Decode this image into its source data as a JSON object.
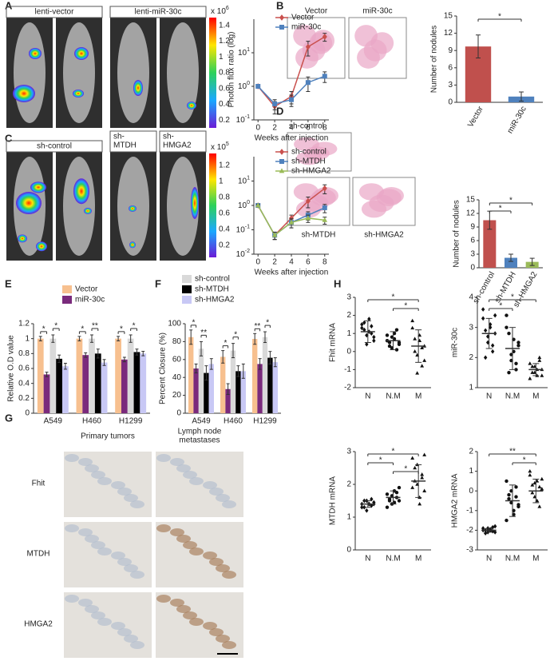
{
  "panel_labels": [
    "A",
    "B",
    "C",
    "D",
    "E",
    "F",
    "G",
    "H"
  ],
  "images": {
    "A": {
      "captions": [
        "lenti-vector",
        "lenti-miR-30c"
      ],
      "colorbar": {
        "multiplier": "x 10",
        "exponent": "6",
        "lim": [
          0.1,
          1.5
        ],
        "ticks": [
          1.4,
          1.2,
          1,
          0.8,
          0.6,
          0.4,
          0.2
        ]
      }
    },
    "B": {
      "captions": [
        "Vector",
        "miR-30c"
      ]
    },
    "C": {
      "captions": [
        "sh-control",
        [
          "sh-",
          "MTDH"
        ],
        [
          "sh-",
          "HMGA2"
        ]
      ],
      "colorbar": {
        "multiplier": "x 10",
        "exponent": "5",
        "lim": [
          0.05,
          1.35
        ],
        "ticks": [
          1.2,
          1,
          0.8,
          0.6,
          0.4,
          0.2
        ]
      }
    },
    "D": {
      "captions": [
        "sh-control",
        "sh-MTDH",
        "sh-HMGA2"
      ]
    },
    "G": {
      "columns": [
        "Primary tumors",
        [
          "Lymph node",
          "metastases"
        ]
      ],
      "rows": [
        "Fhit",
        "MTDH",
        "HMGA2"
      ]
    }
  },
  "chart_data": [
    {
      "type": "line",
      "log_y": true,
      "x": [
        0,
        2,
        4,
        6,
        8
      ],
      "xlim": [
        -0.5,
        8.5
      ],
      "xticks": [
        0,
        2,
        4,
        6,
        8
      ],
      "ylim": [
        0.1,
        100
      ],
      "yticks": [
        {
          "value": 10,
          "label": "10",
          "exponent": "1"
        },
        {
          "value": 1,
          "label": "10",
          "exponent": "0"
        },
        {
          "value": 0.1,
          "label": "10",
          "exponent": "-1"
        }
      ],
      "xlabel": "Weeks after injection",
      "ylabel": "Photon flux ratio (log)",
      "series": [
        {
          "name": "Vector",
          "color": "#c9504d",
          "marker": "diamond",
          "values": [
            1,
            0.25,
            0.5,
            15,
            30
          ],
          "errors": [
            0.1,
            0.1,
            0.2,
            7,
            8
          ]
        },
        {
          "name": "miR-30c",
          "color": "#4f81bd",
          "marker": "square",
          "values": [
            1,
            0.3,
            0.4,
            1.3,
            2
          ],
          "errors": [
            0.1,
            0.1,
            0.15,
            0.6,
            0.7
          ]
        }
      ]
    },
    {
      "type": "bar",
      "categories": [
        "Vector",
        "miR-30c"
      ],
      "values": [
        9.7,
        1
      ],
      "errors": [
        2,
        0.8
      ],
      "colors": [
        "#c0504d",
        "#4f81bd"
      ],
      "ylim": [
        0,
        15
      ],
      "yticks": [
        0,
        3,
        6,
        9,
        12,
        15
      ],
      "ylabel": "Number of nodules",
      "significance": [
        {
          "label": "*",
          "between": [
            "Vector",
            "miR-30c"
          ]
        }
      ]
    },
    {
      "type": "line",
      "log_y": true,
      "x": [
        0,
        2,
        4,
        6,
        8
      ],
      "xlim": [
        -0.5,
        8.5
      ],
      "xticks": [
        0,
        2,
        4,
        6,
        8
      ],
      "ylim": [
        0.01,
        100
      ],
      "yticks": [
        {
          "value": 10,
          "label": "10",
          "exponent": "1"
        },
        {
          "value": 1,
          "label": "10",
          "exponent": "0"
        },
        {
          "value": 0.1,
          "label": "10",
          "exponent": "-1"
        },
        {
          "value": 0.01,
          "label": "10",
          "exponent": "-2"
        }
      ],
      "xlabel": "Weeks after injection",
      "series": [
        {
          "name": "sh-control",
          "color": "#c9504d",
          "marker": "diamond",
          "values": [
            1,
            0.06,
            0.3,
            1.5,
            5
          ],
          "errors": [
            0.1,
            0.02,
            0.1,
            0.7,
            2
          ]
        },
        {
          "name": "sh-MTDH",
          "color": "#4f81bd",
          "marker": "square",
          "values": [
            1,
            0.06,
            0.2,
            0.4,
            0.8
          ],
          "errors": [
            0.1,
            0.02,
            0.08,
            0.15,
            0.3
          ]
        },
        {
          "name": "sh-HMGA2",
          "color": "#9bbb59",
          "marker": "triangle",
          "values": [
            1,
            0.06,
            0.2,
            0.3,
            0.25
          ],
          "errors": [
            0.1,
            0.02,
            0.08,
            0.1,
            0.08
          ]
        }
      ]
    },
    {
      "type": "bar",
      "categories": [
        "sh-control",
        "sh-MTDH",
        "sh-HMGA2"
      ],
      "values": [
        10.5,
        2.2,
        1.3
      ],
      "errors": [
        2,
        0.8,
        0.8
      ],
      "colors": [
        "#c0504d",
        "#4f81bd",
        "#9bbb59"
      ],
      "ylim": [
        0,
        15
      ],
      "yticks": [
        0,
        3,
        6,
        9,
        12,
        15
      ],
      "ylabel": "Number of nodules",
      "significance": [
        {
          "label": "*",
          "between": [
            "sh-control",
            "sh-HMGA2"
          ]
        },
        {
          "label": "*",
          "between": [
            "sh-control",
            "sh-MTDH"
          ]
        }
      ]
    },
    {
      "type": "grouped_bar",
      "categories": [
        "A549",
        "H460",
        "H1299"
      ],
      "ylim": [
        0,
        1.2
      ],
      "yticks": [
        0,
        0.2,
        0.4,
        0.6,
        0.8,
        1,
        1.2
      ],
      "ylabel": "Relative O.D value",
      "series": [
        {
          "name": "Vector",
          "color": "#f7c08f",
          "values": [
            1,
            1,
            1
          ],
          "errors": [
            0.03,
            0.03,
            0.03
          ]
        },
        {
          "name": "miR-30c",
          "color": "#7a2a7c",
          "values": [
            0.52,
            0.78,
            0.72
          ],
          "errors": [
            0.03,
            0.03,
            0.03
          ]
        },
        {
          "name": "sh-control",
          "color": "#d9d9d9",
          "values": [
            1,
            1,
            1
          ],
          "errors": [
            0.05,
            0.05,
            0.05
          ]
        },
        {
          "name": "sh-MTDH",
          "color": "#000000",
          "values": [
            0.73,
            0.8,
            0.82
          ],
          "errors": [
            0.05,
            0.06,
            0.04
          ]
        },
        {
          "name": "sh-HMGA2",
          "color": "#c8c8f5",
          "values": [
            0.63,
            0.68,
            0.8
          ],
          "errors": [
            0.04,
            0.04,
            0.03
          ]
        }
      ],
      "significance": [
        [
          "*",
          "*"
        ],
        [
          "*",
          "**"
        ],
        [
          "*",
          "*"
        ]
      ]
    },
    {
      "type": "grouped_bar",
      "categories": [
        "A549",
        "H460",
        "H1299"
      ],
      "ylim": [
        0,
        100
      ],
      "yticks": [
        0,
        20,
        40,
        60,
        80,
        100
      ],
      "ylabel": "Percent Closure (%)",
      "series": [
        {
          "color": "#f7c08f",
          "values": [
            85,
            63,
            83
          ],
          "errors": [
            8,
            7,
            6
          ]
        },
        {
          "color": "#7a2a7c",
          "values": [
            50,
            27,
            55
          ],
          "errors": [
            5,
            6,
            6
          ]
        },
        {
          "color": "#d9d9d9",
          "values": [
            72,
            70,
            85
          ],
          "errors": [
            8,
            8,
            6
          ]
        },
        {
          "color": "#000000",
          "values": [
            45,
            47,
            62
          ],
          "errors": [
            8,
            6,
            7
          ]
        },
        {
          "color": "#c8c8f5",
          "values": [
            55,
            47,
            57
          ],
          "errors": [
            6,
            8,
            5
          ]
        }
      ],
      "significance": [
        [
          "*",
          "**"
        ],
        [
          "*",
          "*"
        ],
        [
          "**",
          "*"
        ]
      ]
    },
    {
      "type": "strip",
      "categories": [
        "N",
        "N.M",
        "M"
      ],
      "markers": [
        "diamond",
        "circle",
        "triangle"
      ],
      "ylim": [
        -2,
        3
      ],
      "yticks": [
        -2,
        -1,
        0,
        1,
        2,
        3
      ],
      "ylabel": "Fhit mRNA",
      "groups": [
        [
          1.5,
          1.2,
          0.9,
          1.8,
          1.0,
          0.6,
          1.3,
          1.6,
          0.4,
          1.1,
          1.4,
          0.8
        ],
        [
          0.9,
          0.5,
          0.2,
          0.7,
          1.2,
          0.4,
          0.6,
          0.3,
          0.8,
          1.0,
          0.1,
          0.5
        ],
        [
          1.3,
          0.7,
          -0.2,
          0.9,
          -0.8,
          0.3,
          1.7,
          0.0,
          -1.2,
          0.6,
          0.2,
          -0.5
        ]
      ],
      "means": [
        1.1,
        0.6,
        0.3
      ],
      "sds": [
        0.6,
        0.5,
        0.9
      ],
      "significance": [
        {
          "label": "*",
          "between": [
            "N",
            "M"
          ]
        },
        {
          "label": "*",
          "between": [
            "N.M",
            "M"
          ]
        }
      ]
    },
    {
      "type": "strip",
      "categories": [
        "N",
        "N.M",
        "M"
      ],
      "markers": [
        "diamond",
        "circle",
        "triangle"
      ],
      "ylim": [
        1,
        4
      ],
      "yticks": [
        1,
        2,
        3,
        4
      ],
      "ylabel": "miR-30c",
      "groups": [
        [
          3.6,
          2.9,
          2.5,
          3.1,
          2.2,
          2.8,
          3.3,
          2.0,
          2.7,
          3.0,
          2.4,
          3.4
        ],
        [
          3.4,
          2.8,
          1.9,
          2.2,
          1.6,
          2.5,
          3.0,
          1.5,
          2.1,
          2.6,
          1.8,
          2.4
        ],
        [
          1.8,
          1.5,
          1.7,
          1.4,
          1.9,
          1.6,
          1.3,
          1.7,
          1.5,
          1.6,
          2.0,
          1.4
        ]
      ],
      "means": [
        2.8,
        2.3,
        1.6
      ],
      "sds": [
        0.5,
        0.7,
        0.2
      ],
      "significance": [
        {
          "label": "*",
          "between": [
            "N",
            "M"
          ]
        },
        {
          "label": "*",
          "between": [
            "N",
            "N.M"
          ]
        }
      ]
    },
    {
      "type": "strip",
      "categories": [
        "N",
        "N.M",
        "M"
      ],
      "markers": [
        "diamond",
        "circle",
        "triangle"
      ],
      "ylim": [
        0,
        3
      ],
      "yticks": [
        0,
        1,
        2,
        3
      ],
      "ylabel": "MTDH mRNA",
      "groups": [
        [
          1.4,
          1.3,
          1.5,
          1.4,
          1.35,
          1.45,
          1.3,
          1.5,
          1.2,
          1.4,
          1.55,
          1.4
        ],
        [
          1.7,
          1.5,
          1.4,
          1.8,
          1.6,
          1.9,
          1.3,
          1.55,
          1.65,
          1.45,
          1.75,
          1.5
        ],
        [
          2.8,
          2.5,
          2.0,
          1.6,
          2.3,
          2.9,
          1.9,
          2.1,
          2.6,
          1.4,
          2.2,
          1.8
        ]
      ],
      "means": [
        1.4,
        1.6,
        2.1
      ],
      "sds": [
        0.1,
        0.2,
        0.5
      ],
      "significance": [
        {
          "label": "*",
          "between": [
            "N",
            "M"
          ]
        },
        {
          "label": "*",
          "between": [
            "N",
            "N.M"
          ]
        },
        {
          "label": "*",
          "between": [
            "N.M",
            "M"
          ]
        }
      ]
    },
    {
      "type": "strip",
      "categories": [
        "N",
        "N.M",
        "M"
      ],
      "markers": [
        "diamond",
        "circle",
        "triangle"
      ],
      "ylim": [
        -3,
        2
      ],
      "yticks": [
        -3,
        -2,
        -1,
        0,
        1,
        2
      ],
      "ylabel": "HMGA2 mRNA",
      "groups": [
        [
          -1.9,
          -2.0,
          -2.1,
          -1.95,
          -2.05,
          -1.8,
          -2.0,
          -2.15,
          -1.9,
          -2.0,
          -1.85,
          -2.1
        ],
        [
          0.5,
          -0.2,
          -0.6,
          -1.2,
          0.2,
          -0.8,
          -1.5,
          -0.4,
          0.0,
          -1.0,
          -0.3,
          -0.7
        ],
        [
          0.8,
          0.3,
          -0.3,
          0.5,
          -0.8,
          0.1,
          1.0,
          -0.1,
          0.4,
          -0.5,
          0.2,
          0.6
        ]
      ],
      "means": [
        -2,
        -0.5,
        0
      ],
      "sds": [
        0.1,
        0.8,
        0.6
      ],
      "significance": [
        {
          "label": "**",
          "between": [
            "N",
            "M"
          ]
        },
        {
          "label": "*",
          "between": [
            "N.M",
            "M"
          ]
        }
      ]
    }
  ]
}
